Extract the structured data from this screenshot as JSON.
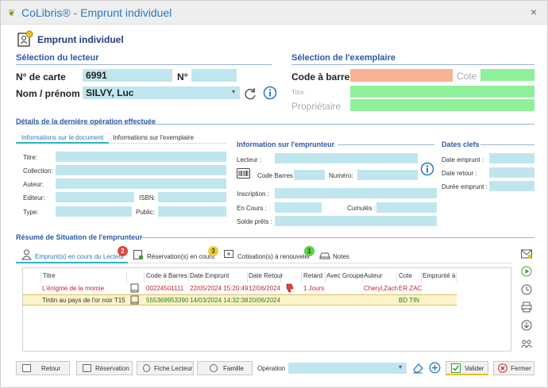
{
  "window": {
    "title": "CoLibris® - Emprunt individuel",
    "close_label": "×"
  },
  "header": {
    "title": "Emprunt individuel"
  },
  "lecteur": {
    "section_title": "Sélection du lecteur",
    "card_label": "N° de carte",
    "card_value": "6991",
    "n_label": "N°",
    "name_label": "Nom / prénom",
    "name_value": "SILVY, Luc"
  },
  "exemplaire": {
    "section_title": "Sélection de l'exemplaire",
    "barcode_label": "Code à barre",
    "cote_placeholder": "Cote",
    "titre_placeholder": "Titre",
    "proprietaire_placeholder": "Propriétaire"
  },
  "details": {
    "section_title": "Détails de la dernière opération effectuée",
    "tabs": [
      "Informations sur le document",
      "Informations sur l'exemplaire"
    ],
    "labels": {
      "titre": "Titre:",
      "collection": "Collection:",
      "auteur": "Auteur:",
      "editeur": "Editeur:",
      "isbn": "ISBN:",
      "type": "Type:",
      "public": "Public:"
    }
  },
  "emprunteur": {
    "section_title": "Information sur l'emprunteur",
    "labels": {
      "lecteur": "Lecteur :",
      "code_barres": "Code Barres",
      "numero": "Numéro:",
      "inscription": "Inscription :",
      "en_cours": "En Cours :",
      "cumules": "Cumulés :",
      "solde": "Solde prêts :"
    }
  },
  "dates": {
    "section_title": "Dates clefs",
    "labels": {
      "emprunt": "Date emprunt :",
      "retour": "Date retour :",
      "duree": "Durée emprunt :"
    }
  },
  "resume": {
    "section_title": "Résumé de Situation de l'emprunteur",
    "tabs": [
      {
        "label": "Emprunt(s) en cours du Lecteur",
        "count": "2"
      },
      {
        "label": "Réservation(s) en cours",
        "count": "3"
      },
      {
        "label": "Cotisation(s) à renouveler",
        "count": "1"
      },
      {
        "label": "Notes",
        "count": ""
      }
    ],
    "columns": [
      "Titre",
      "Code à Barres",
      "Date Emprunt",
      "Date Retour",
      "Retard",
      "Avec Groupe",
      "Auteur",
      "Cote",
      "Emprunté à"
    ],
    "rows": [
      {
        "titre": "L'énigme de la momie",
        "code": "00224501111",
        "date_emprunt": "22/05/2024 15:20:49",
        "date_retour": "12/06/2024",
        "retard": "1 Jours",
        "groupe": "",
        "auteur": "Cheryl,Zach",
        "cote": "ER ZAC",
        "emprunte": ""
      },
      {
        "titre": "Tintin au pays de l'or noir T15",
        "code": "555369953390",
        "date_emprunt": "14/03/2024 14:32:38",
        "date_retour": "20/06/2024",
        "retard": "",
        "groupe": "",
        "auteur": "",
        "cote": "BD TIN",
        "emprunte": ""
      }
    ]
  },
  "footer": {
    "retour": "Retour",
    "reservation": "Réservation",
    "fiche": "Fiche Lecteur",
    "famille": "Famille",
    "operation_label": "Opération",
    "valider": "Valider",
    "fermer": "Fermer"
  },
  "colors": {
    "accent": "#2b78c5",
    "field": "#bfe6ee",
    "green_field": "#8ff09a",
    "orange_field": "#f7b195",
    "row_alt": "#fbf3c9"
  }
}
